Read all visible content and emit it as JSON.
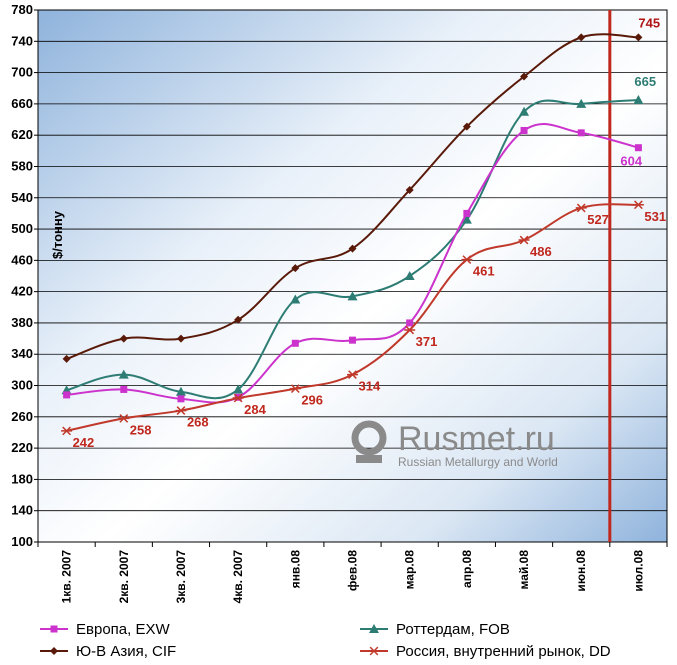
{
  "chart_data": {
    "type": "line",
    "ylabel": "$/тонну",
    "ylim": [
      100,
      780
    ],
    "y_ticks": [
      100,
      140,
      180,
      220,
      260,
      300,
      340,
      380,
      420,
      460,
      500,
      540,
      580,
      620,
      660,
      700,
      740,
      780
    ],
    "grid": "horizontal",
    "categories": [
      "1кв. 2007",
      "2кв. 2007",
      "3кв. 2007",
      "4кв. 2007",
      "янв.08",
      "фев.08",
      "мар.08",
      "апр.08",
      "май.08",
      "июн.08",
      "июл.08"
    ],
    "series": [
      {
        "name": "Европа, EXW",
        "color": "#cc33cc",
        "marker": "square",
        "values": [
          288,
          295,
          283,
          285,
          354,
          358,
          380,
          520,
          626,
          623,
          604
        ],
        "labels": [
          null,
          null,
          null,
          null,
          null,
          null,
          null,
          null,
          null,
          null,
          "604"
        ],
        "label_color": "#cc33cc"
      },
      {
        "name": "Роттердам, FOB",
        "color": "#2e7d75",
        "marker": "triangle",
        "values": [
          294,
          314,
          292,
          295,
          410,
          414,
          440,
          512,
          650,
          660,
          665
        ],
        "labels": [
          null,
          null,
          null,
          null,
          null,
          null,
          null,
          null,
          null,
          null,
          "665"
        ],
        "label_color": "#2e7d75"
      },
      {
        "name": "Ю-В Азия, CIF",
        "color": "#5a1a0a",
        "marker": "diamond",
        "values": [
          334,
          360,
          360,
          384,
          450,
          475,
          550,
          631,
          695,
          745,
          745
        ],
        "labels": [
          null,
          null,
          null,
          null,
          null,
          null,
          null,
          null,
          null,
          null,
          "745"
        ],
        "label_color": "#b01414"
      },
      {
        "name": "Россия, внутренний рынок, DD",
        "color": "#c0392b",
        "marker": "star",
        "values": [
          242,
          258,
          268,
          284,
          296,
          314,
          371,
          461,
          486,
          527,
          531
        ],
        "labels": [
          "242",
          "258",
          "268",
          "284",
          "296",
          "314",
          "371",
          "461",
          "486",
          "527",
          "531"
        ],
        "label_color": "#c0281e"
      }
    ],
    "legend": "bottom",
    "vertical_marker": {
      "between": [
        "июн.08",
        "июл.08"
      ],
      "color": "#c0281e"
    }
  },
  "watermark": {
    "brand": "Rusmet.ru",
    "tagline": "Russian Metallurgy and World"
  }
}
